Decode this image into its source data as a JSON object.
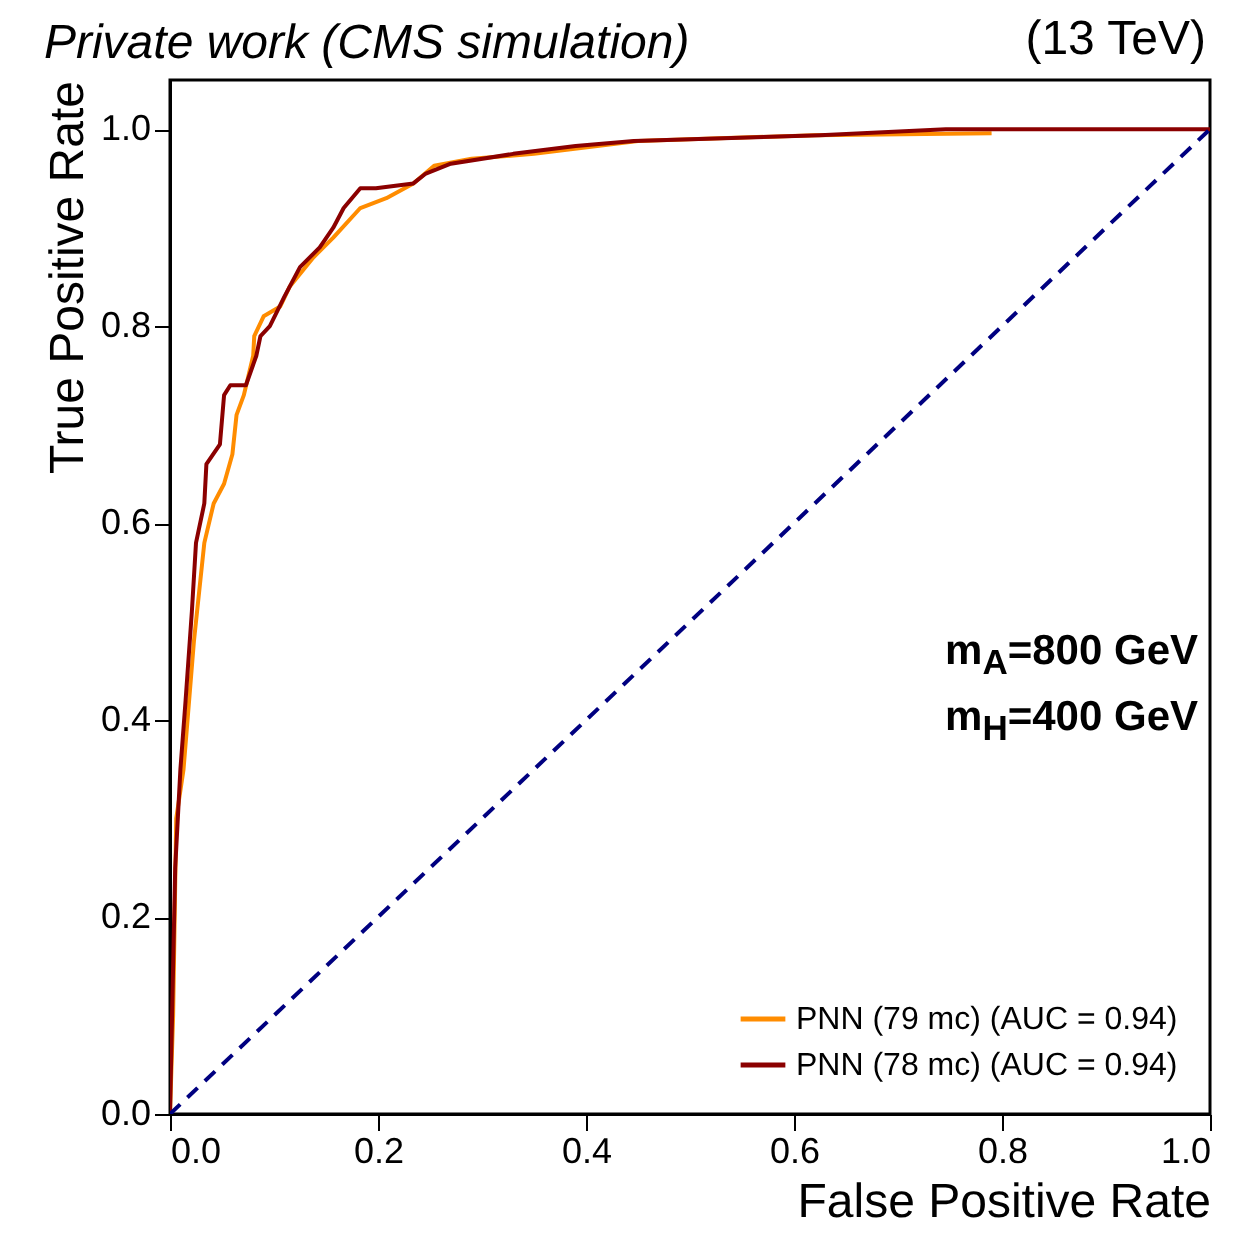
{
  "chart_data": {
    "type": "line",
    "title": "Private work (CMS simulation)",
    "subtitle": "(13 TeV)",
    "xlabel": "False Positive Rate",
    "ylabel": "True Positive Rate",
    "annotations": [
      "m$_{A}$=800 GeV",
      "m$_{H}$=400 GeV"
    ],
    "xlim": [
      0,
      1
    ],
    "ylim": [
      0,
      1.05
    ],
    "xticks": [
      {
        "value": 0,
        "label": "0.0"
      },
      0.2,
      0.4,
      0.6,
      0.8,
      {
        "value": 1,
        "label": "1.0"
      }
    ],
    "yticks": [
      {
        "value": 0,
        "label": "0.0"
      },
      0.2,
      0.4,
      0.6,
      0.8,
      {
        "value": 1,
        "label": "1.0"
      }
    ],
    "legend": "bottom right",
    "series": [
      {
        "name": "PNN (79 mc) (AUC = 0.94)",
        "color": "#ff8c00",
        "x": [
          0,
          0.003,
          0.006,
          0.013,
          0.023,
          0.033,
          0.042,
          0.052,
          0.06,
          0.064,
          0.071,
          0.08,
          0.081,
          0.09,
          0.106,
          0.115,
          0.138,
          0.157,
          0.183,
          0.208,
          0.234,
          0.254,
          0.29,
          0.35,
          0.45,
          0.62,
          0.79
        ],
        "values": [
          0,
          0.1,
          0.3,
          0.35,
          0.48,
          0.58,
          0.62,
          0.64,
          0.67,
          0.71,
          0.73,
          0.77,
          0.79,
          0.81,
          0.82,
          0.84,
          0.87,
          0.89,
          0.92,
          0.93,
          0.945,
          0.963,
          0.97,
          0.975,
          0.988,
          0.994,
          0.996
        ]
      },
      {
        "name": "PNN (78 mc) (AUC = 0.94)",
        "color": "#8b0000",
        "x": [
          0,
          0.005,
          0.01,
          0.015,
          0.021,
          0.025,
          0.033,
          0.035,
          0.048,
          0.052,
          0.058,
          0.073,
          0.083,
          0.087,
          0.096,
          0.11,
          0.125,
          0.144,
          0.157,
          0.167,
          0.183,
          0.198,
          0.234,
          0.246,
          0.27,
          0.33,
          0.39,
          0.446,
          0.625,
          0.746,
          1
        ],
        "values": [
          0,
          0.25,
          0.35,
          0.42,
          0.51,
          0.58,
          0.62,
          0.66,
          0.68,
          0.73,
          0.74,
          0.74,
          0.77,
          0.79,
          0.8,
          0.83,
          0.86,
          0.88,
          0.9,
          0.92,
          0.94,
          0.94,
          0.945,
          0.955,
          0.965,
          0.975,
          0.983,
          0.988,
          0.994,
          1,
          1
        ]
      },
      {
        "color": "#000080",
        "line_style": "dashed",
        "x": [
          0,
          1
        ],
        "values": [
          0,
          1
        ]
      }
    ]
  }
}
